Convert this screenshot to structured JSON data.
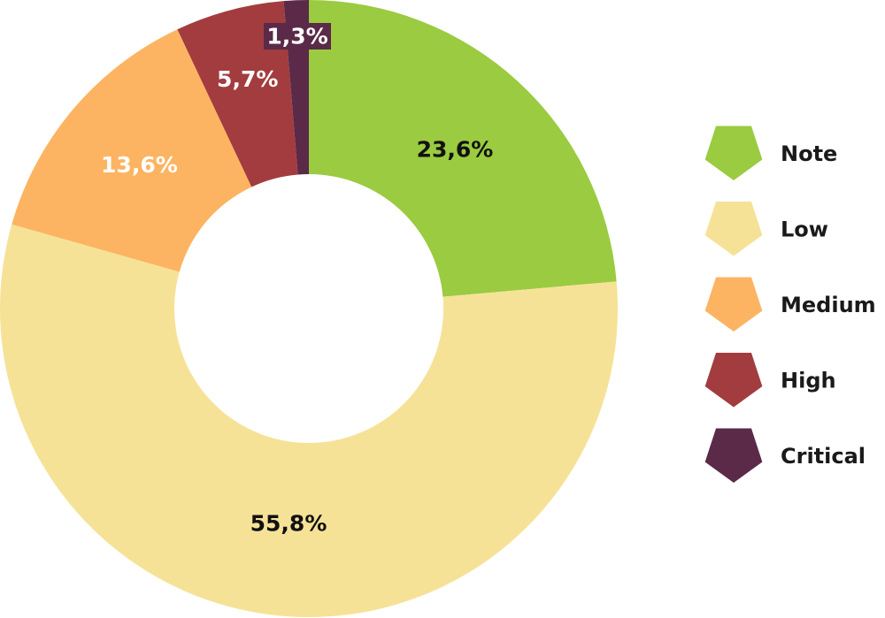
{
  "chart_data": {
    "type": "pie",
    "categories": [
      "Note",
      "Low",
      "Medium",
      "High",
      "Critical"
    ],
    "values": [
      23.6,
      55.8,
      13.6,
      5.7,
      1.3
    ],
    "labels": [
      "23,6%",
      "55,8%",
      "13,6%",
      "5,7%",
      "1,3%"
    ],
    "colors": [
      "#9acb40",
      "#f6e297",
      "#fcb462",
      "#a33c3e",
      "#5a2a48"
    ],
    "label_colors": [
      "#111111",
      "#111111",
      "#ffffff",
      "#ffffff",
      "#ffffff"
    ],
    "donut": true,
    "legend": "right",
    "title": ""
  }
}
